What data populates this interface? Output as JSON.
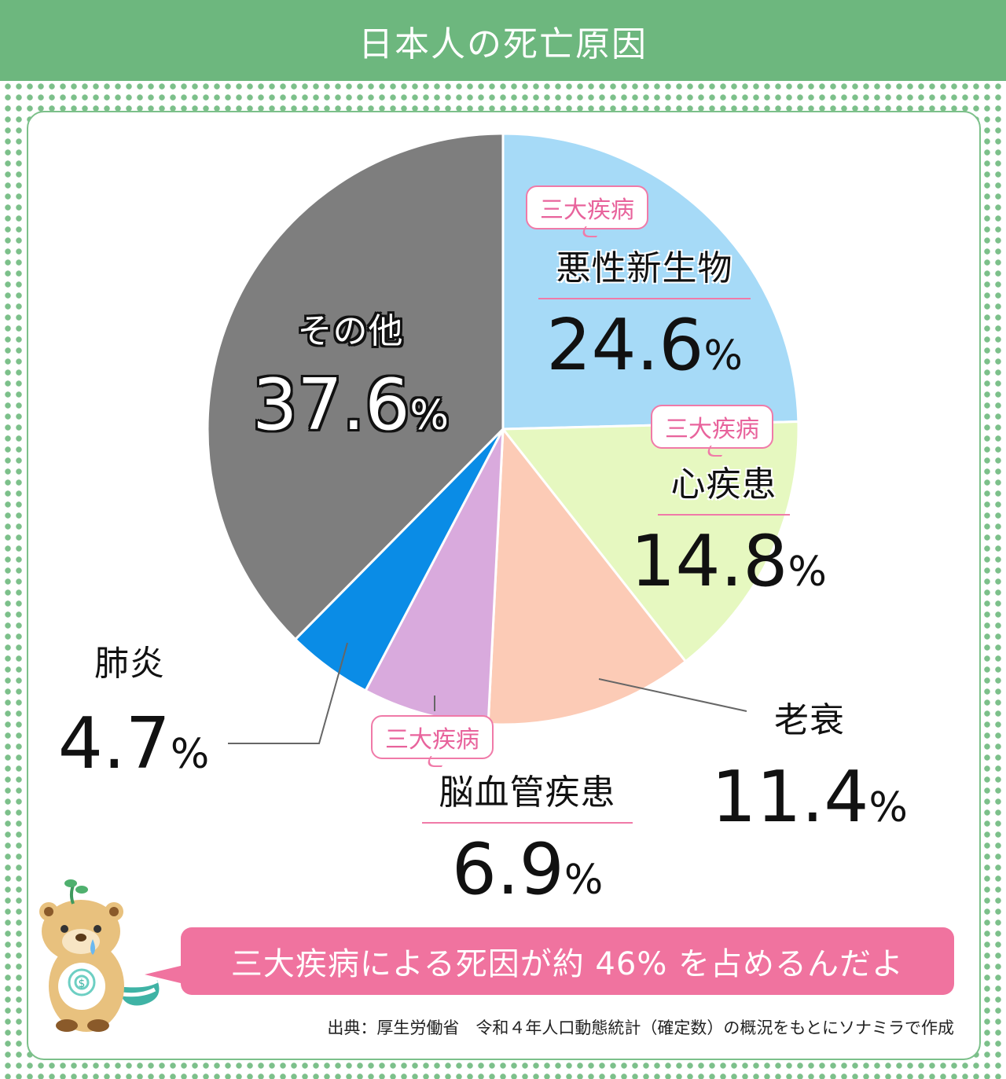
{
  "header": {
    "title": "日本人の死亡原因"
  },
  "chart_data": {
    "type": "pie",
    "title": "日本人の死亡原因",
    "unit": "%",
    "slices": [
      {
        "label": "悪性新生物",
        "value": 24.6,
        "color": "#a6daf7",
        "tag": "三大疾病"
      },
      {
        "label": "心疾患",
        "value": 14.8,
        "color": "#e6f8c0",
        "tag": "三大疾病"
      },
      {
        "label": "老衰",
        "value": 11.4,
        "color": "#fccbb6"
      },
      {
        "label": "脳血管疾患",
        "value": 6.9,
        "color": "#d9aadd",
        "tag": "三大疾病"
      },
      {
        "label": "肺炎",
        "value": 4.7,
        "color": "#0a8ce6"
      },
      {
        "label": "その他",
        "value": 37.6,
        "color": "#7e7e7e"
      }
    ]
  },
  "callout": {
    "text": "三大疾病による死因が約 46% を占めるんだよ"
  },
  "source": {
    "text": "出典：厚生労働省　令和４年人口動態統計（確定数）の概況をもとにソナミラで作成"
  },
  "character": {
    "icon": "otter-mascot-icon",
    "badge_text": "$"
  }
}
